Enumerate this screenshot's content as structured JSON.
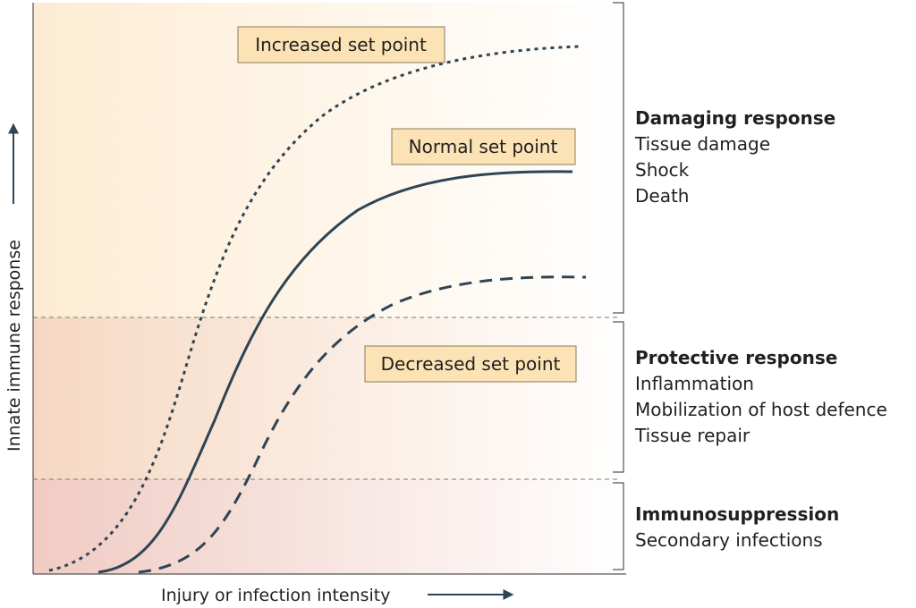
{
  "axes": {
    "y_label": "Innate immune response",
    "x_label": "Injury or infection intensity"
  },
  "curves": [
    {
      "label": "Increased set point",
      "style": "dotted"
    },
    {
      "label": "Normal set point",
      "style": "solid"
    },
    {
      "label": "Decreased set point",
      "style": "dashed"
    }
  ],
  "zones": [
    {
      "title": "Damaging response",
      "items": [
        "Tissue damage",
        "Shock",
        "Death"
      ]
    },
    {
      "title": "Protective response",
      "items": [
        "Inflammation",
        "Mobilization of host defence",
        "Tissue repair"
      ]
    },
    {
      "title": "Immunosuppression",
      "items": [
        "Secondary infections"
      ]
    }
  ],
  "colors": {
    "curve": "#2f4454",
    "label_box_fill": "#fbe3b5",
    "label_box_stroke": "#8a7a5a",
    "zone_top_tint": "#fdf0de",
    "zone_mid_tint": "#f6dcc8",
    "zone_low_tint": "#f0cfc6"
  }
}
